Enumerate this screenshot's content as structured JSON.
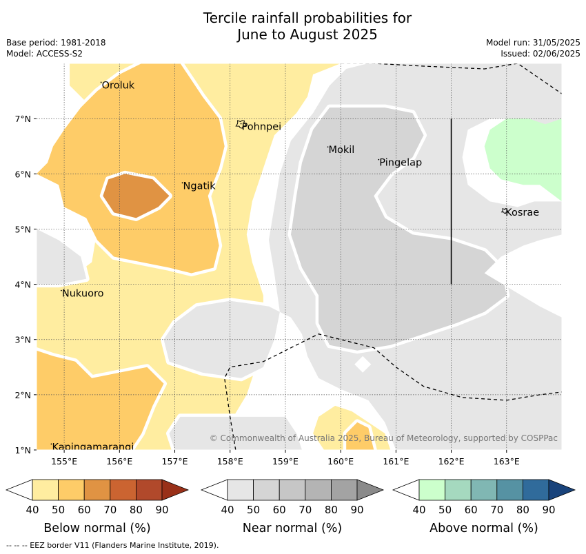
{
  "header": {
    "title_line1": "Tercile rainfall probabilities for",
    "title_line2": "June to August 2025",
    "base_period": "Base period: 1981-2018",
    "model": "Model: ACCESS-S2",
    "model_run": "Model run: 31/05/2025",
    "issued": "Issued: 02/06/2025"
  },
  "map": {
    "copyright": "© Commonwealth of Australia 2025, Bureau of Meteorology, supported by COSPPac",
    "places": [
      {
        "name": "Oroluk",
        "lon": 155.68,
        "lat": 7.62
      },
      {
        "name": "Pohnpei",
        "lon": 158.21,
        "lat": 6.87
      },
      {
        "name": "Mokil",
        "lon": 159.78,
        "lat": 6.45
      },
      {
        "name": "Pingelap",
        "lon": 160.7,
        "lat": 6.22
      },
      {
        "name": "Ngatik",
        "lon": 157.15,
        "lat": 5.8
      },
      {
        "name": "Kosrae",
        "lon": 162.98,
        "lat": 5.32
      },
      {
        "name": "Nukuoro",
        "lon": 154.96,
        "lat": 3.85
      },
      {
        "name": "Kapingamarangi",
        "lon": 154.78,
        "lat": 1.07
      }
    ]
  },
  "chart_data": {
    "type": "heatmap",
    "title": "Tercile rainfall probabilities for June to August 2025",
    "xlim": [
      154.5,
      164.0
    ],
    "ylim": [
      1.0,
      8.0
    ],
    "x_ticks": [
      {
        "value": 155,
        "label": "155°E"
      },
      {
        "value": 156,
        "label": "156°E"
      },
      {
        "value": 157,
        "label": "157°E"
      },
      {
        "value": 158,
        "label": "158°E"
      },
      {
        "value": 159,
        "label": "159°E"
      },
      {
        "value": 160,
        "label": "160°E"
      },
      {
        "value": 161,
        "label": "161°E"
      },
      {
        "value": 162,
        "label": "162°E"
      },
      {
        "value": 163,
        "label": "163°E"
      }
    ],
    "y_ticks": [
      {
        "value": 1,
        "label": "1°N"
      },
      {
        "value": 2,
        "label": "2°N"
      },
      {
        "value": 3,
        "label": "3°N"
      },
      {
        "value": 4,
        "label": "4°N"
      },
      {
        "value": 5,
        "label": "5°N"
      },
      {
        "value": 6,
        "label": "6°N"
      },
      {
        "value": 7,
        "label": "7°N"
      }
    ],
    "grid": true,
    "regions": [
      {
        "category": "below",
        "level": 40,
        "color": "#ffeda0",
        "polygon": [
          [
            154.5,
            8.0
          ],
          [
            155.1,
            8.0
          ],
          [
            155.1,
            7.6
          ],
          [
            155.4,
            7.3
          ],
          [
            155.5,
            6.9
          ],
          [
            155.4,
            6.3
          ],
          [
            155.5,
            5.6
          ],
          [
            155.6,
            5.0
          ],
          [
            155.5,
            4.4
          ],
          [
            155.1,
            4.1
          ],
          [
            154.5,
            4.0
          ],
          [
            154.5,
            1.0
          ],
          [
            157.8,
            1.0
          ],
          [
            158.0,
            1.5
          ],
          [
            158.3,
            2.0
          ],
          [
            158.5,
            2.6
          ],
          [
            158.6,
            3.2
          ],
          [
            158.6,
            3.8
          ],
          [
            158.4,
            4.4
          ],
          [
            158.3,
            4.9
          ],
          [
            158.4,
            5.5
          ],
          [
            158.6,
            6.1
          ],
          [
            158.8,
            6.7
          ],
          [
            159.2,
            7.1
          ],
          [
            159.4,
            7.4
          ],
          [
            159.5,
            7.8
          ],
          [
            160.0,
            8.0
          ]
        ]
      },
      {
        "category": "below",
        "level": 40,
        "color": "#ffeda0",
        "polygon": [
          [
            159.7,
            1.0
          ],
          [
            160.9,
            1.0
          ],
          [
            160.8,
            1.3
          ],
          [
            160.5,
            1.5
          ],
          [
            160.2,
            1.7
          ],
          [
            159.9,
            1.8
          ],
          [
            159.6,
            1.6
          ],
          [
            159.5,
            1.3
          ]
        ]
      },
      {
        "category": "below",
        "level": 40,
        "color": "#ffeda0",
        "polygon": [
          [
            161.2,
            1.95
          ],
          [
            162.4,
            1.95
          ],
          [
            162.7,
            1.8
          ],
          [
            162.2,
            1.6
          ],
          [
            162.0,
            1.5
          ],
          [
            161.8,
            1.6
          ],
          [
            161.3,
            1.8
          ]
        ]
      },
      {
        "category": "below",
        "level": 50,
        "color": "#fecc68",
        "polygon": [
          [
            154.5,
            6.0
          ],
          [
            154.9,
            5.8
          ],
          [
            155.0,
            5.4
          ],
          [
            155.4,
            5.2
          ],
          [
            155.6,
            4.8
          ],
          [
            155.9,
            4.5
          ],
          [
            156.4,
            4.4
          ],
          [
            156.9,
            4.3
          ],
          [
            157.3,
            4.2
          ],
          [
            157.7,
            4.3
          ],
          [
            157.8,
            4.7
          ],
          [
            157.7,
            5.2
          ],
          [
            157.6,
            5.6
          ],
          [
            157.8,
            6.1
          ],
          [
            157.9,
            6.5
          ],
          [
            157.8,
            7.0
          ],
          [
            157.5,
            7.4
          ],
          [
            157.3,
            7.7
          ],
          [
            157.1,
            8.0
          ],
          [
            156.4,
            8.0
          ],
          [
            156.0,
            7.8
          ],
          [
            155.6,
            7.5
          ],
          [
            155.3,
            7.2
          ],
          [
            155.0,
            6.8
          ],
          [
            154.8,
            6.5
          ],
          [
            154.5,
            6.4
          ]
        ]
      },
      {
        "category": "below",
        "level": 50,
        "color": "#fecc68",
        "polygon": [
          [
            154.5,
            1.0
          ],
          [
            156.2,
            1.0
          ],
          [
            156.4,
            1.3
          ],
          [
            156.6,
            1.8
          ],
          [
            156.8,
            2.2
          ],
          [
            156.5,
            2.5
          ],
          [
            156.0,
            2.4
          ],
          [
            155.5,
            2.3
          ],
          [
            155.2,
            2.6
          ],
          [
            154.8,
            2.7
          ],
          [
            154.5,
            2.8
          ]
        ]
      },
      {
        "category": "below",
        "level": 50,
        "color": "#fecc68",
        "polygon": [
          [
            160.1,
            1.0
          ],
          [
            160.6,
            1.0
          ],
          [
            160.5,
            1.4
          ],
          [
            160.3,
            1.5
          ],
          [
            160.1,
            1.3
          ]
        ]
      },
      {
        "category": "below",
        "level": 60,
        "color": "#e09343",
        "polygon": [
          [
            155.8,
            5.9
          ],
          [
            156.1,
            6.0
          ],
          [
            156.6,
            5.9
          ],
          [
            156.9,
            5.6
          ],
          [
            156.7,
            5.4
          ],
          [
            156.3,
            5.2
          ],
          [
            155.9,
            5.3
          ],
          [
            155.7,
            5.6
          ]
        ]
      },
      {
        "category": "near",
        "level": 40,
        "color": "#e6e6e6",
        "polygon": [
          [
            160.5,
            8.0
          ],
          [
            164.0,
            8.0
          ],
          [
            164.0,
            6.5
          ],
          [
            163.6,
            6.7
          ],
          [
            163.2,
            7.0
          ],
          [
            162.7,
            7.0
          ],
          [
            162.3,
            6.8
          ],
          [
            162.2,
            6.3
          ],
          [
            162.3,
            5.8
          ],
          [
            162.7,
            5.5
          ],
          [
            163.2,
            5.4
          ],
          [
            163.5,
            5.5
          ],
          [
            164.0,
            5.5
          ],
          [
            164.0,
            1.0
          ],
          [
            161.0,
            1.0
          ],
          [
            160.8,
            1.5
          ],
          [
            160.5,
            1.9
          ],
          [
            160.0,
            2.1
          ],
          [
            159.6,
            2.3
          ],
          [
            159.4,
            2.7
          ],
          [
            159.3,
            3.1
          ],
          [
            159.1,
            3.4
          ],
          [
            158.7,
            3.6
          ],
          [
            158.0,
            3.7
          ],
          [
            157.4,
            3.6
          ],
          [
            157.0,
            3.3
          ],
          [
            156.8,
            3.0
          ],
          [
            156.9,
            2.6
          ],
          [
            157.5,
            2.4
          ],
          [
            158.2,
            2.3
          ],
          [
            158.6,
            2.5
          ],
          [
            158.8,
            3.0
          ],
          [
            158.9,
            3.5
          ],
          [
            158.8,
            4.2
          ],
          [
            158.7,
            4.8
          ],
          [
            158.8,
            5.4
          ],
          [
            158.9,
            6.0
          ],
          [
            159.1,
            6.6
          ],
          [
            159.5,
            7.1
          ],
          [
            159.8,
            7.6
          ],
          [
            160.1,
            7.9
          ]
        ]
      },
      {
        "category": "near",
        "level": 40,
        "color": "#e6e6e6",
        "polygon": [
          [
            154.5,
            5.0
          ],
          [
            154.9,
            4.8
          ],
          [
            155.3,
            4.5
          ],
          [
            155.4,
            4.1
          ],
          [
            154.9,
            4.0
          ],
          [
            154.5,
            4.0
          ]
        ]
      },
      {
        "category": "near",
        "level": 40,
        "color": "#e6e6e6",
        "polygon": [
          [
            157.0,
            1.0
          ],
          [
            159.3,
            1.0
          ],
          [
            159.2,
            1.3
          ],
          [
            159.0,
            1.6
          ],
          [
            158.4,
            1.6
          ],
          [
            157.7,
            1.6
          ],
          [
            157.1,
            1.6
          ],
          [
            156.9,
            1.3
          ]
        ]
      },
      {
        "category": "near",
        "level": 50,
        "color": "#d5d5d5",
        "polygon": [
          [
            159.8,
            7.2
          ],
          [
            160.2,
            7.2
          ],
          [
            160.8,
            7.2
          ],
          [
            161.3,
            7.1
          ],
          [
            161.5,
            6.7
          ],
          [
            161.3,
            6.3
          ],
          [
            160.9,
            6.0
          ],
          [
            160.6,
            5.6
          ],
          [
            160.8,
            5.2
          ],
          [
            161.3,
            4.9
          ],
          [
            162.0,
            4.8
          ],
          [
            162.6,
            4.6
          ],
          [
            162.9,
            4.3
          ],
          [
            163.0,
            3.8
          ],
          [
            162.6,
            3.5
          ],
          [
            162.1,
            3.3
          ],
          [
            161.5,
            3.1
          ],
          [
            160.9,
            2.9
          ],
          [
            160.3,
            2.8
          ],
          [
            159.8,
            2.9
          ],
          [
            159.6,
            3.3
          ],
          [
            159.6,
            3.8
          ],
          [
            159.3,
            4.3
          ],
          [
            159.1,
            4.9
          ],
          [
            159.2,
            5.6
          ],
          [
            159.3,
            6.2
          ],
          [
            159.5,
            6.8
          ]
        ]
      }
    ],
    "white_islands": [
      [
        [
          154.5,
          7.0
        ],
        [
          154.7,
          6.9
        ],
        [
          154.8,
          6.5
        ],
        [
          154.7,
          6.2
        ],
        [
          154.5,
          6.0
        ]
      ],
      [
        [
          162.6,
          4.2
        ],
        [
          162.9,
          4.5
        ],
        [
          163.3,
          4.7
        ],
        [
          163.6,
          4.8
        ],
        [
          164.0,
          4.9
        ],
        [
          164.0,
          3.4
        ],
        [
          163.6,
          3.6
        ],
        [
          163.1,
          3.9
        ]
      ]
    ],
    "diamond": [
      [
        160.4,
        2.7
      ],
      [
        160.55,
        2.55
      ],
      [
        160.4,
        2.4
      ],
      [
        160.25,
        2.55
      ]
    ],
    "above_regions": [
      {
        "category": "above",
        "level": 40,
        "color": "#ccffcc",
        "polygon": [
          [
            164.0,
            7.0
          ],
          [
            163.7,
            6.9
          ],
          [
            163.4,
            7.0
          ],
          [
            163.0,
            7.0
          ],
          [
            162.7,
            6.8
          ],
          [
            162.6,
            6.5
          ],
          [
            162.7,
            6.1
          ],
          [
            162.9,
            5.9
          ],
          [
            163.3,
            5.8
          ],
          [
            163.6,
            5.8
          ],
          [
            164.0,
            5.5
          ]
        ]
      }
    ],
    "eez_borders": [
      [
        [
          160.0,
          8.0
        ],
        [
          160.6,
          8.0
        ],
        [
          161.5,
          7.95
        ],
        [
          162.6,
          7.9
        ],
        [
          163.2,
          8.0
        ],
        [
          164.0,
          7.45
        ]
      ],
      [
        [
          158.1,
          1.0
        ],
        [
          158.0,
          1.6
        ],
        [
          157.9,
          2.3
        ],
        [
          158.0,
          2.5
        ],
        [
          158.6,
          2.6
        ],
        [
          159.2,
          2.9
        ],
        [
          159.6,
          3.1
        ],
        [
          160.2,
          2.95
        ],
        [
          160.6,
          2.85
        ],
        [
          161.0,
          2.5
        ],
        [
          161.5,
          2.15
        ],
        [
          162.2,
          1.95
        ],
        [
          163.0,
          1.9
        ],
        [
          163.6,
          2.0
        ],
        [
          164.0,
          2.05
        ]
      ]
    ],
    "vertical_line": {
      "lon": 162.0,
      "lat_from": 4.0,
      "lat_to": 7.0
    },
    "islands_outline": [
      {
        "name": "Pohnpei",
        "lon": 158.2,
        "lat": 6.9
      },
      {
        "name": "Kosrae",
        "lon": 162.97,
        "lat": 5.33
      }
    ]
  },
  "legend": {
    "tick_labels": [
      "40",
      "50",
      "60",
      "70",
      "80",
      "90"
    ],
    "groups": [
      {
        "name": "Below normal (%)",
        "colors": [
          "#ffeda0",
          "#fecc68",
          "#e09343",
          "#cb6431",
          "#b1492b"
        ],
        "extend": "#993018"
      },
      {
        "name": "Near normal (%)",
        "colors": [
          "#e6e6e6",
          "#d5d5d5",
          "#c6c6c6",
          "#b4b4b4",
          "#a3a3a3"
        ],
        "extend": "#8a8a8a"
      },
      {
        "name": "Above normal (%)",
        "colors": [
          "#ccffcc",
          "#a5d9bf",
          "#80b7b3",
          "#5692a3",
          "#306b9b"
        ],
        "extend": "#19437b"
      }
    ]
  },
  "footer": {
    "note": "--  --  -- EEZ border V11 (Flanders Marine Institute, 2019)."
  }
}
